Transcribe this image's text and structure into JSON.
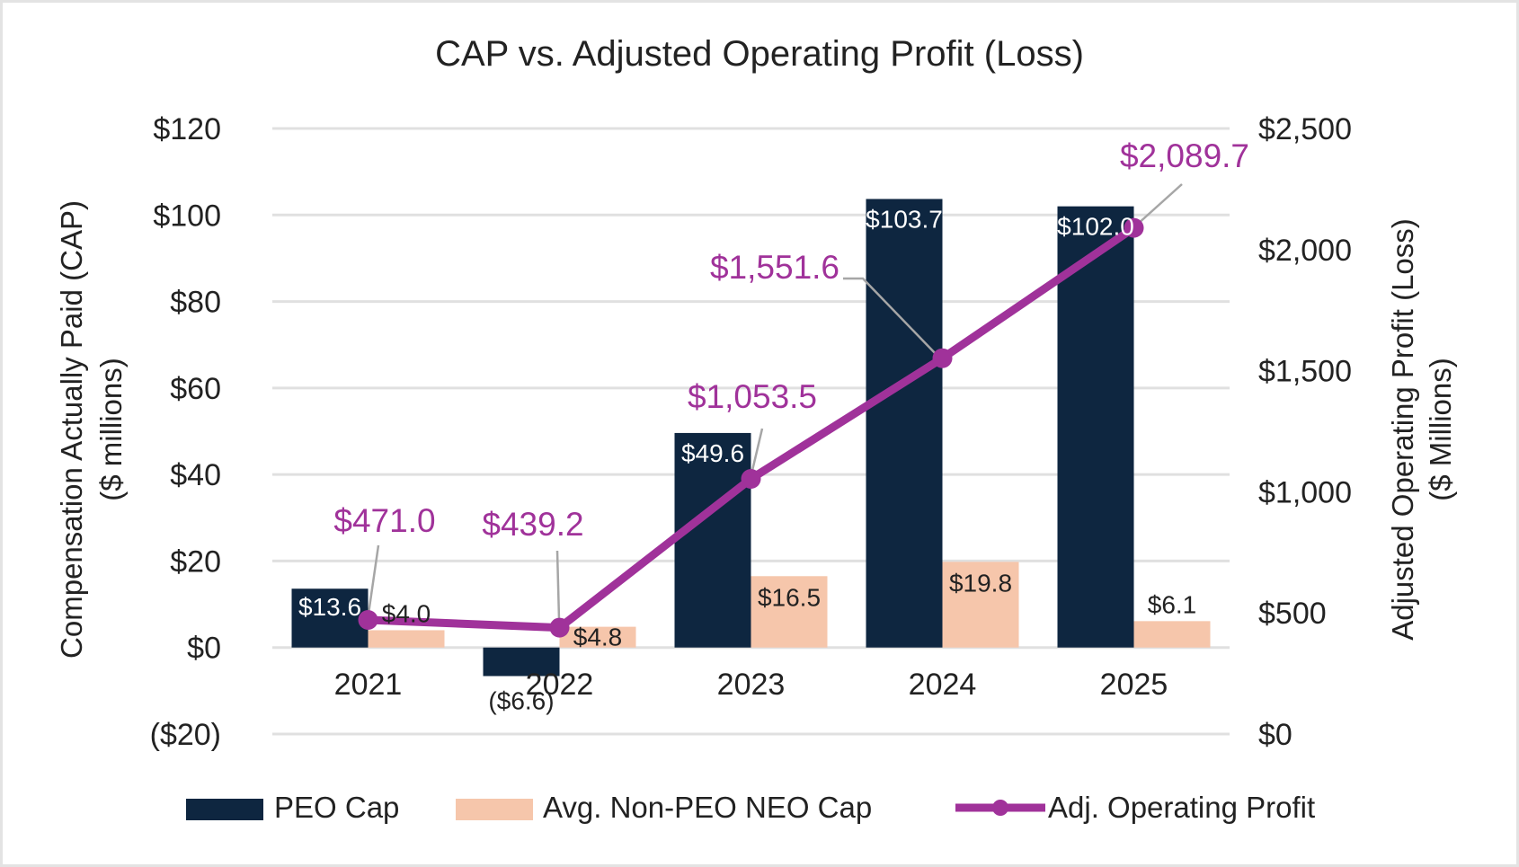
{
  "chart_data": {
    "type": "bar",
    "title": "CAP vs. Adjusted Operating Profit (Loss)",
    "categories": [
      "2021",
      "2022",
      "2023",
      "2024",
      "2025"
    ],
    "ylabel": [
      "Compensation Actually Paid (CAP)",
      "($ millions)"
    ],
    "y2label": [
      "Adjusted Operating Profit (Loss)",
      "($ Millions)"
    ],
    "ylim": [
      -20,
      120
    ],
    "y2lim": [
      0,
      2500
    ],
    "yticks": [
      "($20)",
      "$0",
      "$20",
      "$40",
      "$60",
      "$80",
      "$100",
      "$120"
    ],
    "ytick_values": [
      -20,
      0,
      20,
      40,
      60,
      80,
      100,
      120
    ],
    "y2ticks": [
      "$0",
      "$500",
      "$1,000",
      "$1,500",
      "$2,000",
      "$2,500"
    ],
    "y2tick_values": [
      0,
      500,
      1000,
      1500,
      2000,
      2500
    ],
    "grid": true,
    "legend_position": "bottom",
    "series": [
      {
        "name": "PEO Cap",
        "type": "bar",
        "axis": "left",
        "color": "#0e2640",
        "values": [
          13.6,
          -6.6,
          49.6,
          103.7,
          102.0
        ],
        "labels": [
          "$13.6",
          "($6.6)",
          "$49.6",
          "$103.7",
          "$102.0"
        ]
      },
      {
        "name": "Avg. Non-PEO NEO Cap",
        "type": "bar",
        "axis": "left",
        "color": "#f6c6ab",
        "values": [
          4.0,
          4.8,
          16.5,
          19.8,
          6.1
        ],
        "labels": [
          "$4.0",
          "$4.8",
          "$16.5",
          "$19.8",
          "$6.1"
        ]
      },
      {
        "name": "Adj. Operating Profit",
        "type": "line",
        "axis": "right",
        "color": "#a0329a",
        "values": [
          471.0,
          439.2,
          1053.5,
          1551.6,
          2089.7
        ],
        "labels": [
          "$471.0",
          "$439.2",
          "$1,053.5",
          "$1,551.6",
          "$2,089.7"
        ]
      }
    ]
  }
}
